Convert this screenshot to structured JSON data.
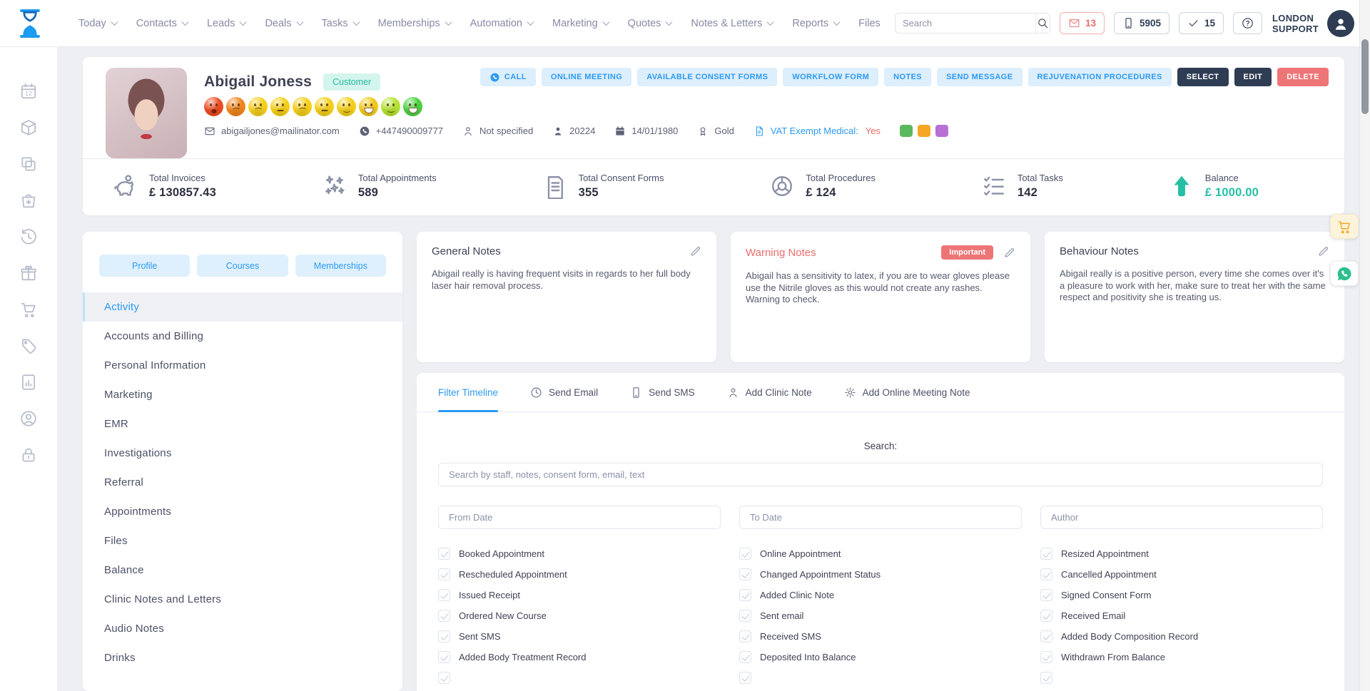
{
  "colors": {
    "primary": "#2b9af3",
    "navy": "#2e3d54",
    "danger": "#ee6b6b",
    "teal": "#26bfa5"
  },
  "topbar": {
    "nav": [
      {
        "label": "Today",
        "chevron": true
      },
      {
        "label": "Contacts",
        "chevron": true
      },
      {
        "label": "Leads",
        "chevron": true
      },
      {
        "label": "Deals",
        "chevron": true
      },
      {
        "label": "Tasks",
        "chevron": true
      },
      {
        "label": "Memberships",
        "chevron": true
      },
      {
        "label": "Automation",
        "chevron": true
      },
      {
        "label": "Marketing",
        "chevron": true
      },
      {
        "label": "Quotes",
        "chevron": true
      },
      {
        "label": "Notes & Letters",
        "chevron": true
      },
      {
        "label": "Reports",
        "chevron": true
      },
      {
        "label": "Files",
        "chevron": false
      }
    ],
    "search_placeholder": "Search",
    "badges": {
      "mail": "13",
      "phone": "5905",
      "tasks": "15"
    },
    "location_line1": "LONDON",
    "location_line2": "SUPPORT"
  },
  "rail": {
    "icons": [
      {
        "icon": "calendar",
        "name": "calendar-icon"
      },
      {
        "icon": "package",
        "name": "package-icon"
      },
      {
        "icon": "copy",
        "name": "copy-icon"
      },
      {
        "icon": "bag",
        "name": "shopping-bag-icon"
      },
      {
        "icon": "history",
        "name": "history-icon"
      },
      {
        "icon": "gift",
        "name": "gift-icon"
      },
      {
        "icon": "cart",
        "name": "cart-icon"
      },
      {
        "icon": "tag",
        "name": "price-tag-icon"
      },
      {
        "icon": "report",
        "name": "report-icon"
      },
      {
        "icon": "user-circle",
        "name": "user-circle-icon"
      },
      {
        "icon": "lock",
        "name": "lock-icon"
      }
    ]
  },
  "header": {
    "name": "Abigail Joness",
    "badge": "Customer",
    "emojis": [
      {
        "color": "#ec4c22",
        "mouth": "frown-open"
      },
      {
        "color": "#f0861f",
        "mouth": "frown"
      },
      {
        "color": "#f4cf1b",
        "mouth": "frown"
      },
      {
        "color": "#f4cf1b",
        "mouth": "flat"
      },
      {
        "color": "#f4cf1b",
        "mouth": "frown"
      },
      {
        "color": "#f4cf1b",
        "mouth": "flat"
      },
      {
        "color": "#f4cf1b",
        "mouth": "smile"
      },
      {
        "color": "#f0c819",
        "mouth": "grin"
      },
      {
        "color": "#b4e233",
        "mouth": "smile"
      },
      {
        "color": "#49d13e",
        "mouth": "grin"
      }
    ],
    "contact": {
      "email": "abigailjones@mailinator.com",
      "phone": "+447490009777",
      "gender": "Not specified",
      "id": "20224",
      "dob": "14/01/1980",
      "tier": "Gold",
      "vat_label": "VAT Exempt Medical:",
      "vat_value": "Yes"
    },
    "tags": [
      "#5cb85c",
      "#f5a623",
      "#b76fd6"
    ],
    "actions": [
      {
        "label": "CALL",
        "variant": "light",
        "icon": "phone-circle"
      },
      {
        "label": "ONLINE MEETING",
        "variant": "light"
      },
      {
        "label": "AVAILABLE CONSENT FORMS",
        "variant": "light"
      },
      {
        "label": "WORKFLOW FORM",
        "variant": "light"
      },
      {
        "label": "NOTES",
        "variant": "light"
      },
      {
        "label": "SEND MESSAGE",
        "variant": "light"
      },
      {
        "label": "REJUVENATION PROCEDURES",
        "variant": "light"
      },
      {
        "label": "SELECT",
        "variant": "dark"
      },
      {
        "label": "EDIT",
        "variant": "dark"
      },
      {
        "label": "DELETE",
        "variant": "danger"
      }
    ],
    "stats": [
      {
        "label": "Total Invoices",
        "value": "£ 130857.43",
        "icon": "piggy"
      },
      {
        "label": "Total Appointments",
        "value": "589",
        "icon": "stars"
      },
      {
        "label": "Total Consent Forms",
        "value": "355",
        "icon": "doc-lines"
      },
      {
        "label": "Total Procedures",
        "value": "£ 124",
        "icon": "donut"
      },
      {
        "label": "Total Tasks",
        "value": "142",
        "icon": "checklist"
      },
      {
        "label": "Balance",
        "value": "£ 1000.00",
        "icon": "arrow-up",
        "accent": true
      }
    ]
  },
  "left_panel": {
    "tabs": [
      "Profile",
      "Courses",
      "Memberships"
    ],
    "menu": [
      {
        "label": "Activity",
        "active": true
      },
      {
        "label": "Accounts and Billing"
      },
      {
        "label": "Personal Information"
      },
      {
        "label": "Marketing"
      },
      {
        "label": "EMR"
      },
      {
        "label": "Investigations"
      },
      {
        "label": "Referral"
      },
      {
        "label": "Appointments"
      },
      {
        "label": "Files"
      },
      {
        "label": "Balance"
      },
      {
        "label": "Clinic Notes and Letters"
      },
      {
        "label": "Audio Notes"
      },
      {
        "label": "Drinks"
      }
    ]
  },
  "notes": [
    {
      "title": "General Notes",
      "variant": "default",
      "text": "Abigail really is having frequent visits in regards to her full body laser hair removal process."
    },
    {
      "title": "Warning Notes",
      "variant": "warning",
      "badge": "Important",
      "text": "Abigail has a sensitivity to latex, if you are to wear gloves please use the Nitrile gloves as this would not create any rashes. Warning to check."
    },
    {
      "title": "Behaviour Notes",
      "variant": "default",
      "text": "Abigail really is a positive person, every time she comes over it's a pleasure to work with her, make sure to treat her with the same respect and positivity she is treating us."
    }
  ],
  "timeline": {
    "tabs": [
      {
        "label": "Filter Timeline",
        "active": true
      },
      {
        "label": "Send Email",
        "icon": "clock"
      },
      {
        "label": "Send SMS",
        "icon": "mobile"
      },
      {
        "label": "Add Clinic Note",
        "icon": "user"
      },
      {
        "label": "Add Online Meeting Note",
        "icon": "gear"
      }
    ],
    "search_label": "Search:",
    "search_placeholder": "Search by staff, notes, consent form, email, text",
    "from_placeholder": "From Date",
    "to_placeholder": "To Date",
    "author_placeholder": "Author",
    "filters": [
      "Booked Appointment",
      "Online Appointment",
      "Resized Appointment",
      "Rescheduled Appointment",
      "Changed Appointment Status",
      "Cancelled Appointment",
      "Issued Receipt",
      "Added Clinic Note",
      "Signed Consent Form",
      "Ordered New Course",
      "Sent email",
      "Received Email",
      "Sent SMS",
      "Received SMS",
      "Added Body Composition Record",
      "Added Body Treatment Record",
      "Deposited Into Balance",
      "Withdrawn From Balance",
      "",
      "",
      ""
    ]
  }
}
